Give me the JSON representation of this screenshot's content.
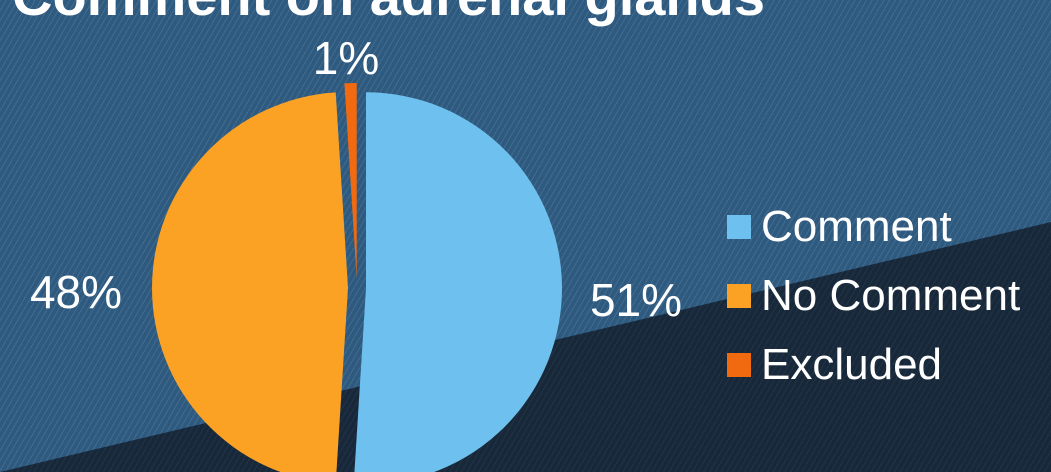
{
  "title": "Comment on adrenal glands",
  "chart_data": {
    "type": "pie",
    "title": "Comment on adrenal glands",
    "slices": [
      {
        "label": "Comment",
        "value": 51,
        "display": "51%",
        "color": "#6ec1ee"
      },
      {
        "label": "No Comment",
        "value": 48,
        "display": "48%",
        "color": "#fba225"
      },
      {
        "label": "Excluded",
        "value": 1,
        "display": "1%",
        "color": "#f26a10"
      }
    ],
    "legend_position": "right",
    "exploded": true
  },
  "colors": {
    "background": "#2e5a80",
    "background_dark": "#17283a",
    "text": "#ffffff"
  }
}
